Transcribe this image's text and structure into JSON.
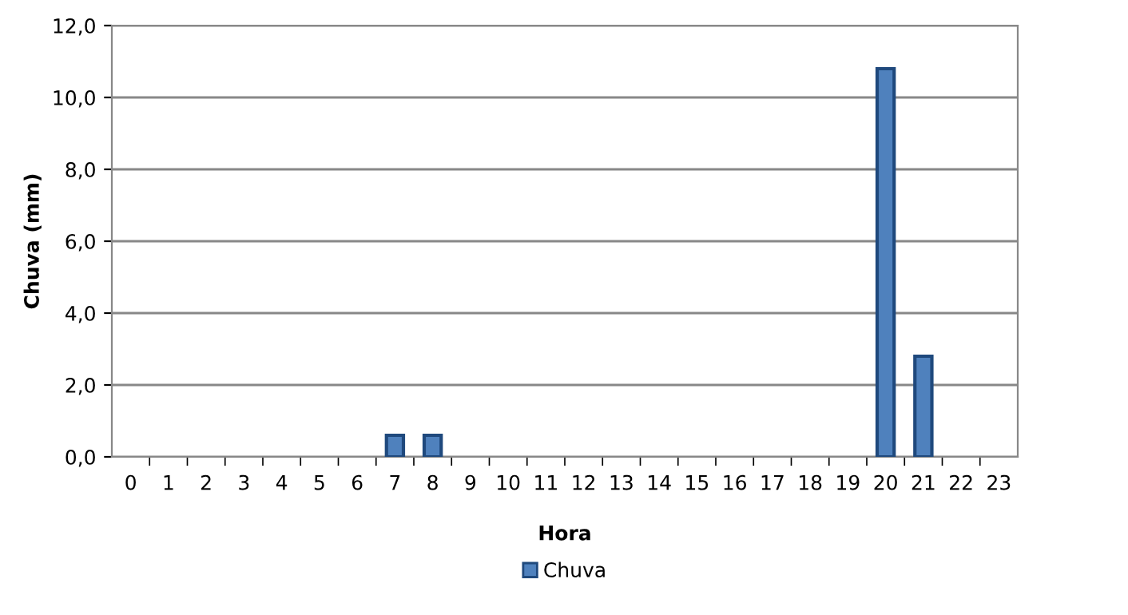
{
  "chart_data": {
    "type": "bar",
    "xlabel": "Hora",
    "ylabel": "Chuva (mm)",
    "categories": [
      "0",
      "1",
      "2",
      "3",
      "4",
      "5",
      "6",
      "7",
      "8",
      "9",
      "10",
      "11",
      "12",
      "13",
      "14",
      "15",
      "16",
      "17",
      "18",
      "19",
      "20",
      "21",
      "22",
      "23"
    ],
    "series": [
      {
        "name": "Chuva",
        "color": "#4f81bd",
        "values": [
          0,
          0,
          0,
          0,
          0,
          0,
          0,
          0.6,
          0.6,
          0,
          0,
          0,
          0,
          0,
          0,
          0,
          0,
          0,
          0,
          0,
          10.8,
          2.8,
          0,
          0
        ]
      }
    ],
    "ylim": [
      0,
      12
    ],
    "yticks": [
      {
        "value": 0,
        "label": "0,0"
      },
      {
        "value": 2,
        "label": "2,0"
      },
      {
        "value": 4,
        "label": "4,0"
      },
      {
        "value": 6,
        "label": "6,0"
      },
      {
        "value": 8,
        "label": "8,0"
      },
      {
        "value": 10,
        "label": "10,0"
      },
      {
        "value": 12,
        "label": "12,0"
      }
    ],
    "grid": "y",
    "legend": "bottom"
  }
}
